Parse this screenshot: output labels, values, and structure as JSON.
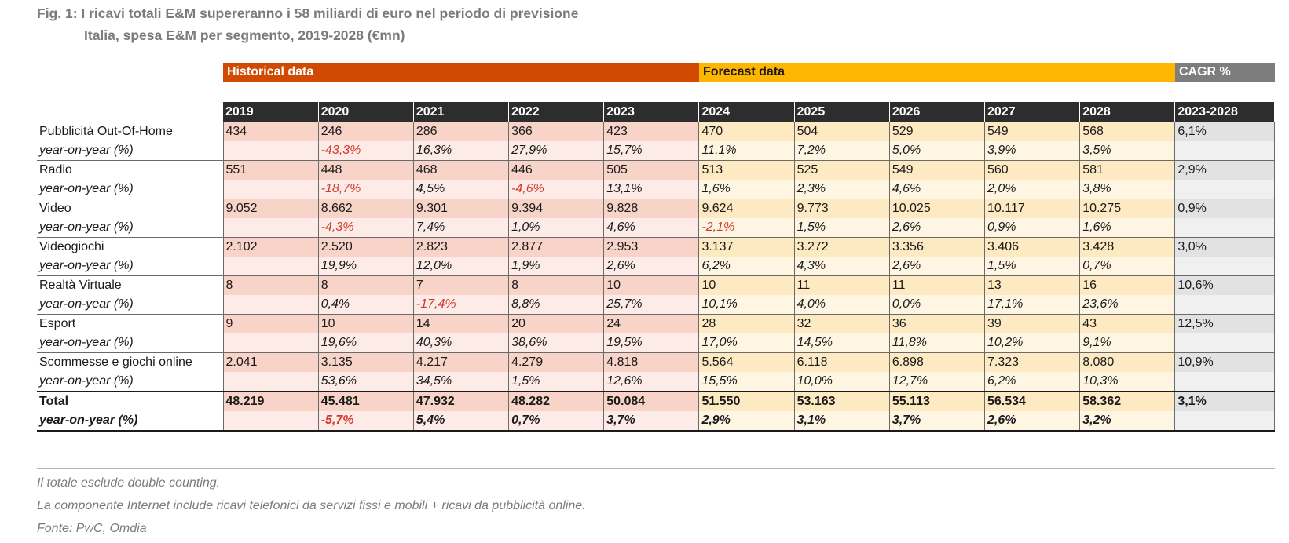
{
  "title": "Fig. 1: I ricavi totali E&M supereranno i 58 miliardi di euro nel periodo di previsione",
  "subtitle": "Italia, spesa E&M per segmento, 2019-2028 (€mn)",
  "bands": {
    "historical": "Historical data",
    "forecast": "Forecast data",
    "cagr": "CAGR %"
  },
  "colors": {
    "historical": "#d04a02",
    "forecast": "#ffb600",
    "cagr": "#7d7d7d",
    "negative": "#d33a2c"
  },
  "notes": [
    "Il totale esclude double counting.",
    "La componente Internet include ricavi telefonici da servizi fissi e mobili + ricavi da pubblicità online.",
    "Fonte: PwC, Omdia"
  ],
  "chart_data": {
    "type": "table",
    "columns": [
      "2019",
      "2020",
      "2021",
      "2022",
      "2023",
      "2024",
      "2025",
      "2026",
      "2027",
      "2028",
      "2023-2028"
    ],
    "historical_years": [
      "2019",
      "2020",
      "2021",
      "2022",
      "2023"
    ],
    "forecast_years": [
      "2024",
      "2025",
      "2026",
      "2027",
      "2028"
    ],
    "rows": [
      {
        "label": "Pubblicità Out-Of-Home",
        "values": [
          "434",
          "246",
          "286",
          "366",
          "423",
          "470",
          "504",
          "529",
          "549",
          "568"
        ],
        "cagr": "6,1%",
        "yoy_label": "year-on-year (%)",
        "yoy": [
          "",
          "-43,3%",
          "16,3%",
          "27,9%",
          "15,7%",
          "11,1%",
          "7,2%",
          "5,0%",
          "3,9%",
          "3,5%"
        ]
      },
      {
        "label": "Radio",
        "values": [
          "551",
          "448",
          "468",
          "446",
          "505",
          "513",
          "525",
          "549",
          "560",
          "581"
        ],
        "cagr": "2,9%",
        "yoy_label": "year-on-year (%)",
        "yoy": [
          "",
          "-18,7%",
          "4,5%",
          "-4,6%",
          "13,1%",
          "1,6%",
          "2,3%",
          "4,6%",
          "2,0%",
          "3,8%"
        ]
      },
      {
        "label": "Video",
        "values": [
          "9.052",
          "8.662",
          "9.301",
          "9.394",
          "9.828",
          "9.624",
          "9.773",
          "10.025",
          "10.117",
          "10.275"
        ],
        "cagr": "0,9%",
        "yoy_label": "year-on-year (%)",
        "yoy": [
          "",
          "-4,3%",
          "7,4%",
          "1,0%",
          "4,6%",
          "-2,1%",
          "1,5%",
          "2,6%",
          "0,9%",
          "1,6%"
        ]
      },
      {
        "label": "Videogiochi",
        "values": [
          "2.102",
          "2.520",
          "2.823",
          "2.877",
          "2.953",
          "3.137",
          "3.272",
          "3.356",
          "3.406",
          "3.428"
        ],
        "cagr": "3,0%",
        "yoy_label": "year-on-year (%)",
        "yoy": [
          "",
          "19,9%",
          "12,0%",
          "1,9%",
          "2,6%",
          "6,2%",
          "4,3%",
          "2,6%",
          "1,5%",
          "0,7%"
        ]
      },
      {
        "label": "Realtà Virtuale",
        "values": [
          "8",
          "8",
          "7",
          "8",
          "10",
          "10",
          "11",
          "11",
          "13",
          "16"
        ],
        "cagr": "10,6%",
        "yoy_label": "year-on-year (%)",
        "yoy": [
          "",
          "0,4%",
          "-17,4%",
          "8,8%",
          "25,7%",
          "10,1%",
          "4,0%",
          "0,0%",
          "17,1%",
          "23,6%"
        ]
      },
      {
        "label": "Esport",
        "values": [
          "9",
          "10",
          "14",
          "20",
          "24",
          "28",
          "32",
          "36",
          "39",
          "43"
        ],
        "cagr": "12,5%",
        "yoy_label": "year-on-year (%)",
        "yoy": [
          "",
          "19,6%",
          "40,3%",
          "38,6%",
          "19,5%",
          "17,0%",
          "14,5%",
          "11,8%",
          "10,2%",
          "9,1%"
        ]
      },
      {
        "label": "Scommesse e giochi online",
        "values": [
          "2.041",
          "3.135",
          "4.217",
          "4.279",
          "4.818",
          "5.564",
          "6.118",
          "6.898",
          "7.323",
          "8.080"
        ],
        "cagr": "10,9%",
        "yoy_label": "year-on-year (%)",
        "yoy": [
          "",
          "53,6%",
          "34,5%",
          "1,5%",
          "12,6%",
          "15,5%",
          "10,0%",
          "12,7%",
          "6,2%",
          "10,3%"
        ]
      },
      {
        "label": "Total",
        "total": true,
        "values": [
          "48.219",
          "45.481",
          "47.932",
          "48.282",
          "50.084",
          "51.550",
          "53.163",
          "55.113",
          "56.534",
          "58.362"
        ],
        "cagr": "3,1%",
        "yoy_label": "year-on-year (%)",
        "yoy": [
          "",
          "-5,7%",
          "5,4%",
          "0,7%",
          "3,7%",
          "2,9%",
          "3,1%",
          "3,7%",
          "2,6%",
          "3,2%"
        ]
      }
    ]
  }
}
